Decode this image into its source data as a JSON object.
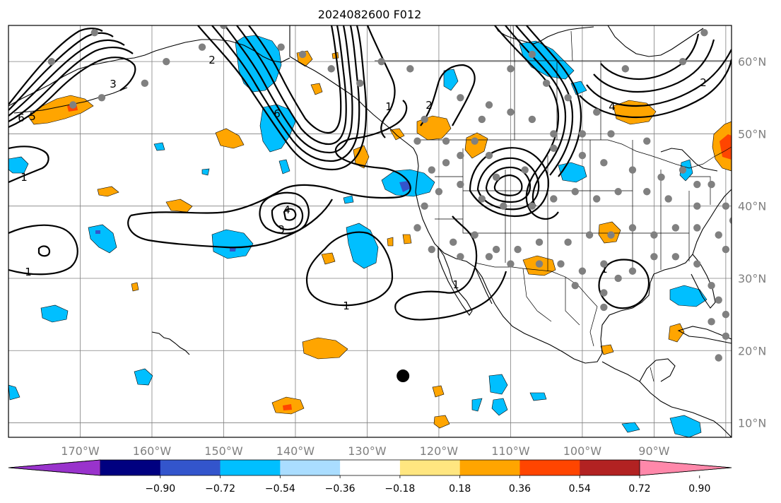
{
  "title": "2024082600 F012",
  "map": {
    "lon_range": [
      -180,
      -79.2
    ],
    "lat_range": [
      8,
      65
    ],
    "lon_ticks": [
      {
        "lon": -170,
        "label": "170°W"
      },
      {
        "lon": -160,
        "label": "160°W"
      },
      {
        "lon": -150,
        "label": "150°W"
      },
      {
        "lon": -140,
        "label": "140°W"
      },
      {
        "lon": -130,
        "label": "130°W"
      },
      {
        "lon": -120,
        "label": "120°W"
      },
      {
        "lon": -110,
        "label": "110°W"
      },
      {
        "lon": -100,
        "label": "100°W"
      },
      {
        "lon": -90,
        "label": "90°W"
      }
    ],
    "lat_ticks": [
      {
        "lat": 10,
        "label": "10°N"
      },
      {
        "lat": 20,
        "label": "20°N"
      },
      {
        "lat": 30,
        "label": "30°N"
      },
      {
        "lat": 40,
        "label": "40°N"
      },
      {
        "lat": 50,
        "label": "50°N"
      },
      {
        "lat": 60,
        "label": "60°N"
      }
    ],
    "grid": true,
    "marker": {
      "lon": -125,
      "lat": 16.5
    }
  },
  "colorbar": {
    "colors": [
      "#9933cc",
      "#000080",
      "#3355cc",
      "#00bfff",
      "#aaddff",
      "#ffffff",
      "#ffe680",
      "#ffa500",
      "#ff4500",
      "#b22222",
      "#ff88aa"
    ],
    "tick_labels": [
      "−0.90",
      "−0.72",
      "−0.54",
      "−0.36",
      "−0.18",
      "0.18",
      "0.36",
      "0.54",
      "0.72",
      "0.90"
    ]
  },
  "contour_labels": [
    "1",
    "1",
    "1",
    "1",
    "1",
    "2",
    "2",
    "2",
    "3",
    "3",
    "4",
    "5",
    "6",
    "6",
    "4",
    "1"
  ],
  "stations": [
    [
      -174,
      60
    ],
    [
      -168,
      64
    ],
    [
      -161,
      57
    ],
    [
      -158,
      60
    ],
    [
      -153,
      62
    ],
    [
      -150,
      65
    ],
    [
      -142,
      62
    ],
    [
      -139,
      61
    ],
    [
      -135,
      59
    ],
    [
      -131,
      57
    ],
    [
      -128,
      60
    ],
    [
      -124,
      59
    ],
    [
      -167,
      55
    ],
    [
      -171,
      54
    ],
    [
      -117,
      55
    ],
    [
      -114,
      52
    ],
    [
      -110,
      59
    ],
    [
      -107,
      61
    ],
    [
      -105,
      57
    ],
    [
      -102,
      55
    ],
    [
      -98,
      53
    ],
    [
      -94,
      59
    ],
    [
      -86,
      60
    ],
    [
      -83,
      64
    ],
    [
      -91,
      49
    ],
    [
      -96,
      50
    ],
    [
      -100,
      50
    ],
    [
      -104,
      50
    ],
    [
      -107,
      52
    ],
    [
      -110,
      53
    ],
    [
      -113,
      54
    ],
    [
      -115,
      49
    ],
    [
      -119,
      49
    ],
    [
      -122,
      52
    ],
    [
      -123,
      49
    ],
    [
      -121,
      45
    ],
    [
      -119,
      46
    ],
    [
      -117,
      47
    ],
    [
      -113,
      47
    ],
    [
      -112,
      44
    ],
    [
      -108,
      45
    ],
    [
      -104,
      48
    ],
    [
      -100,
      47
    ],
    [
      -97,
      46
    ],
    [
      -93,
      45
    ],
    [
      -89,
      44
    ],
    [
      -86,
      45
    ],
    [
      -84,
      43
    ],
    [
      -82,
      43
    ],
    [
      -80,
      40
    ],
    [
      -84,
      40
    ],
    [
      -88,
      41
    ],
    [
      -91,
      42
    ],
    [
      -95,
      42
    ],
    [
      -98,
      41
    ],
    [
      -101,
      42
    ],
    [
      -104,
      41
    ],
    [
      -107,
      40
    ],
    [
      -111,
      40
    ],
    [
      -114,
      41
    ],
    [
      -117,
      43
    ],
    [
      -120,
      42
    ],
    [
      -122,
      40
    ],
    [
      -123,
      37
    ],
    [
      -118,
      35
    ],
    [
      -115,
      36
    ],
    [
      -112,
      34
    ],
    [
      -109,
      34
    ],
    [
      -106,
      35
    ],
    [
      -102,
      35
    ],
    [
      -99,
      36
    ],
    [
      -96,
      36
    ],
    [
      -93,
      37
    ],
    [
      -90,
      36
    ],
    [
      -87,
      37
    ],
    [
      -84,
      37
    ],
    [
      -81,
      36
    ],
    [
      -79,
      38
    ],
    [
      -80,
      34
    ],
    [
      -84,
      32
    ],
    [
      -87,
      33
    ],
    [
      -90,
      33
    ],
    [
      -93,
      31
    ],
    [
      -95,
      30
    ],
    [
      -97,
      32
    ],
    [
      -100,
      31
    ],
    [
      -103,
      32
    ],
    [
      -106,
      32
    ],
    [
      -110,
      32
    ],
    [
      -113,
      33
    ],
    [
      -117,
      33
    ],
    [
      -121,
      34
    ],
    [
      -82,
      29
    ],
    [
      -81,
      27
    ],
    [
      -80,
      25
    ],
    [
      -97,
      28
    ],
    [
      -97,
      26
    ],
    [
      -101,
      29
    ],
    [
      -82,
      24
    ],
    [
      -80,
      22
    ],
    [
      -81,
      19
    ]
  ],
  "colorbar_ticks": [
    -0.9,
    -0.72,
    -0.54,
    -0.36,
    -0.18,
    0.18,
    0.36,
    0.54,
    0.72,
    0.9
  ]
}
